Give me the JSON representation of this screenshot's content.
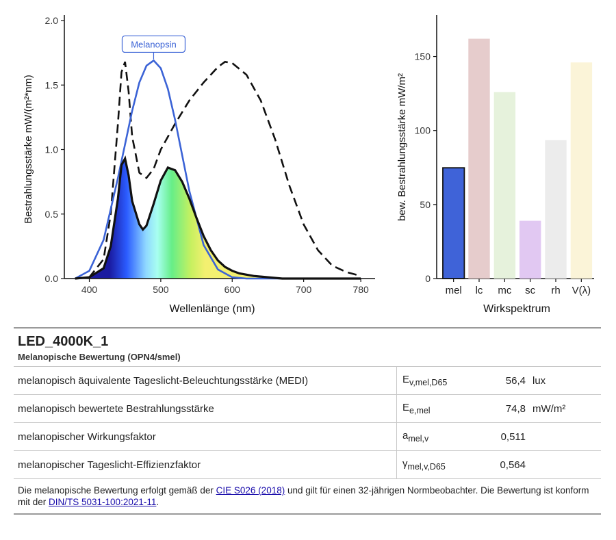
{
  "chart_data": [
    {
      "type": "line",
      "xlabel": "Wellenlänge (nm)",
      "ylabel": "Bestrahlungsstärke  mW/(m²*nm)",
      "xlim": [
        365,
        800
      ],
      "ylim": [
        0,
        2.0
      ],
      "xticks": [
        400,
        500,
        600,
        700,
        780
      ],
      "yticks": [
        "0.0",
        "0.5",
        "1.0",
        "1.5",
        "2.0"
      ],
      "annotation": "Melanopsin",
      "series": [
        {
          "style": "solid black, filled with spectral colour gradient",
          "x": [
            380,
            400,
            420,
            430,
            440,
            445,
            450,
            455,
            460,
            470,
            475,
            480,
            490,
            500,
            510,
            520,
            530,
            540,
            550,
            560,
            570,
            580,
            590,
            600,
            610,
            620,
            630,
            650,
            670,
            700,
            750,
            780
          ],
          "y": [
            0.0,
            0.01,
            0.08,
            0.25,
            0.62,
            0.88,
            0.93,
            0.8,
            0.6,
            0.42,
            0.38,
            0.41,
            0.58,
            0.76,
            0.86,
            0.84,
            0.75,
            0.62,
            0.47,
            0.33,
            0.22,
            0.14,
            0.09,
            0.06,
            0.04,
            0.03,
            0.02,
            0.01,
            0.0,
            0.0,
            0.0,
            0.0
          ]
        },
        {
          "style": "dashed black",
          "x": [
            380,
            400,
            420,
            430,
            440,
            445,
            450,
            455,
            460,
            470,
            480,
            490,
            500,
            520,
            540,
            560,
            580,
            590,
            600,
            620,
            640,
            660,
            680,
            700,
            720,
            740,
            760,
            780
          ],
          "y": [
            0.0,
            0.01,
            0.15,
            0.5,
            1.2,
            1.6,
            1.68,
            1.45,
            1.1,
            0.82,
            0.78,
            0.85,
            1.0,
            1.2,
            1.38,
            1.52,
            1.64,
            1.68,
            1.67,
            1.58,
            1.38,
            1.08,
            0.72,
            0.42,
            0.22,
            0.1,
            0.05,
            0.02
          ]
        },
        {
          "style": "solid blue",
          "color": "#3b63d6",
          "x": [
            380,
            400,
            420,
            440,
            460,
            470,
            480,
            490,
            500,
            510,
            520,
            540,
            560,
            580,
            600,
            620,
            640,
            700,
            780
          ],
          "y": [
            0.0,
            0.06,
            0.3,
            0.78,
            1.3,
            1.52,
            1.65,
            1.69,
            1.63,
            1.47,
            1.23,
            0.68,
            0.26,
            0.07,
            0.01,
            0.0,
            0.0,
            0.0,
            0.0
          ]
        }
      ]
    },
    {
      "type": "bar",
      "xlabel": "Wirkspektrum",
      "ylabel": "bew. Bestrahlungsstärke  mW/m²",
      "ylim": [
        0,
        178
      ],
      "yticks": [
        0,
        50,
        100,
        150
      ],
      "categories": [
        "mel",
        "lc",
        "mc",
        "sc",
        "rh",
        "V(λ)"
      ],
      "values": [
        74.8,
        162,
        126,
        39,
        93.5,
        146
      ],
      "colors": [
        "#3f63d8",
        "#e6cccc",
        "#e6f2dc",
        "#e1c8f2",
        "#ececec",
        "#fbf4d8"
      ]
    }
  ],
  "report": {
    "title": "LED_4000K_1",
    "subtitle": "Melanopische Bewertung (OPN4/smel)",
    "rows": [
      {
        "label": "melanopisch äquivalente Tageslicht-Beleuchtungsstärke (MEDI)",
        "sym": "E",
        "sub": "v,mel,D65",
        "value": "56,4",
        "unit": "lux"
      },
      {
        "label": "melanopisch bewertete Bestrahlungsstärke",
        "sym": "E",
        "sub": "e,mel",
        "value": "74,8",
        "unit": "mW/m²"
      },
      {
        "label": "melanopischer Wirkungsfaktor",
        "sym": "a",
        "sub": "mel,v",
        "value": "0,511",
        "unit": ""
      },
      {
        "label": "melanopischer Tageslicht-Effizienzfaktor",
        "sym": "γ",
        "sub": "mel,v,D65",
        "value": "0,564",
        "unit": ""
      }
    ],
    "note": {
      "part1": "Die melanopische Bewertung erfolgt gemäß der ",
      "link1": "CIE S026 (2018)",
      "part2": " und gilt für einen 32-jährigen Normbeobachter. Die Bewertung ist konform mit der ",
      "link2": "DIN/TS 5031-100:2021-11",
      "part3": "."
    }
  }
}
